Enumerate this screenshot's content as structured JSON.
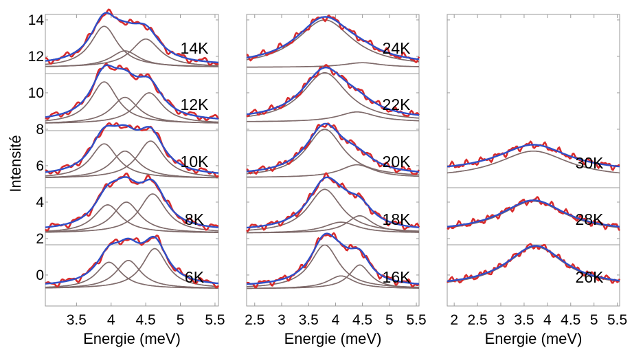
{
  "chart_data": {
    "type": "line",
    "ylabel": "Intensité",
    "y_ticks": [
      "0",
      "2",
      "4",
      "6",
      "8",
      "10",
      "12",
      "14"
    ],
    "colors": {
      "measured": "#d92b2b",
      "fit": "#2f4fc8",
      "components": "#7f6b6b",
      "frame": "#9a9a9a"
    },
    "panels": [
      {
        "xlabel": "Energie (meV)",
        "xlim": [
          3.05,
          5.55
        ],
        "x_ticks": [
          "3.5",
          "4",
          "4.5",
          "5",
          "5.5"
        ],
        "spectra": [
          {
            "temperature": "14K",
            "baseline": 11.4,
            "components": [
              {
                "center": 3.9,
                "amplitude": 2.25,
                "width": 0.28
              },
              {
                "center": 4.2,
                "amplitude": 0.9,
                "width": 0.3
              },
              {
                "center": 4.5,
                "amplitude": 1.55,
                "width": 0.3
              }
            ]
          },
          {
            "temperature": "12K",
            "baseline": 8.3,
            "components": [
              {
                "center": 3.9,
                "amplitude": 2.3,
                "width": 0.28
              },
              {
                "center": 4.2,
                "amplitude": 1.45,
                "width": 0.28
              },
              {
                "center": 4.55,
                "amplitude": 1.7,
                "width": 0.28
              }
            ]
          },
          {
            "temperature": "10K",
            "baseline": 5.3,
            "components": [
              {
                "center": 3.9,
                "amplitude": 1.9,
                "width": 0.28
              },
              {
                "center": 4.2,
                "amplitude": 1.5,
                "width": 0.28
              },
              {
                "center": 4.57,
                "amplitude": 2.05,
                "width": 0.28
              }
            ]
          },
          {
            "temperature": "8K",
            "baseline": 2.3,
            "components": [
              {
                "center": 3.95,
                "amplitude": 1.55,
                "width": 0.28
              },
              {
                "center": 4.22,
                "amplitude": 1.7,
                "width": 0.28
              },
              {
                "center": 4.6,
                "amplitude": 2.15,
                "width": 0.28
              }
            ]
          },
          {
            "temperature": "6K",
            "baseline": -0.75,
            "components": [
              {
                "center": 3.97,
                "amplitude": 1.45,
                "width": 0.26
              },
              {
                "center": 4.25,
                "amplitude": 1.55,
                "width": 0.26
              },
              {
                "center": 4.63,
                "amplitude": 2.2,
                "width": 0.26
              }
            ]
          }
        ]
      },
      {
        "xlabel": "Energie (meV)",
        "xlim": [
          2.35,
          5.55
        ],
        "x_ticks": [
          "2.5",
          "3",
          "3.5",
          "4",
          "4.5",
          "5",
          "5.5"
        ],
        "spectra": [
          {
            "temperature": "24K",
            "baseline": 11.4,
            "components": [
              {
                "center": 3.8,
                "amplitude": 2.6,
                "width": 0.75
              },
              {
                "center": 4.5,
                "amplitude": 0.25,
                "width": 0.5
              }
            ]
          },
          {
            "temperature": "22K",
            "baseline": 8.4,
            "components": [
              {
                "center": 3.8,
                "amplitude": 2.7,
                "width": 0.6
              },
              {
                "center": 4.4,
                "amplitude": 0.55,
                "width": 0.5
              }
            ]
          },
          {
            "temperature": "20K",
            "baseline": 5.35,
            "components": [
              {
                "center": 3.8,
                "amplitude": 2.65,
                "width": 0.5
              },
              {
                "center": 4.4,
                "amplitude": 0.7,
                "width": 0.45
              }
            ]
          },
          {
            "temperature": "18K",
            "baseline": 2.3,
            "components": [
              {
                "center": 3.8,
                "amplitude": 2.4,
                "width": 0.45
              },
              {
                "center": 4.1,
                "amplitude": 0.6,
                "width": 0.45
              },
              {
                "center": 4.45,
                "amplitude": 0.95,
                "width": 0.35
              }
            ]
          },
          {
            "temperature": "16K",
            "baseline": -0.75,
            "components": [
              {
                "center": 3.8,
                "amplitude": 2.4,
                "width": 0.38
              },
              {
                "center": 4.1,
                "amplitude": 0.7,
                "width": 0.35
              },
              {
                "center": 4.45,
                "amplitude": 1.3,
                "width": 0.28
              }
            ]
          }
        ]
      },
      {
        "xlabel": "Energie (meV)",
        "xlim": [
          1.85,
          5.55
        ],
        "x_ticks": [
          "2",
          "2.5",
          "3",
          "3.5",
          "4",
          "4.5",
          "5",
          "5.5"
        ],
        "spectra": [
          {
            "temperature": "30K",
            "baseline": 5.3,
            "fit_offset": 0.35,
            "components": [
              {
                "center": 3.7,
                "amplitude": 1.5,
                "width": 1.1
              }
            ]
          },
          {
            "temperature": "28K",
            "baseline": 2.3,
            "fit_offset": 0.05,
            "components": [
              {
                "center": 3.7,
                "amplitude": 1.75,
                "width": 1.0
              }
            ]
          },
          {
            "temperature": "26K",
            "baseline": -0.7,
            "fit_offset": 0.05,
            "components": [
              {
                "center": 3.75,
                "amplitude": 2.25,
                "width": 0.9
              }
            ]
          }
        ]
      }
    ]
  }
}
